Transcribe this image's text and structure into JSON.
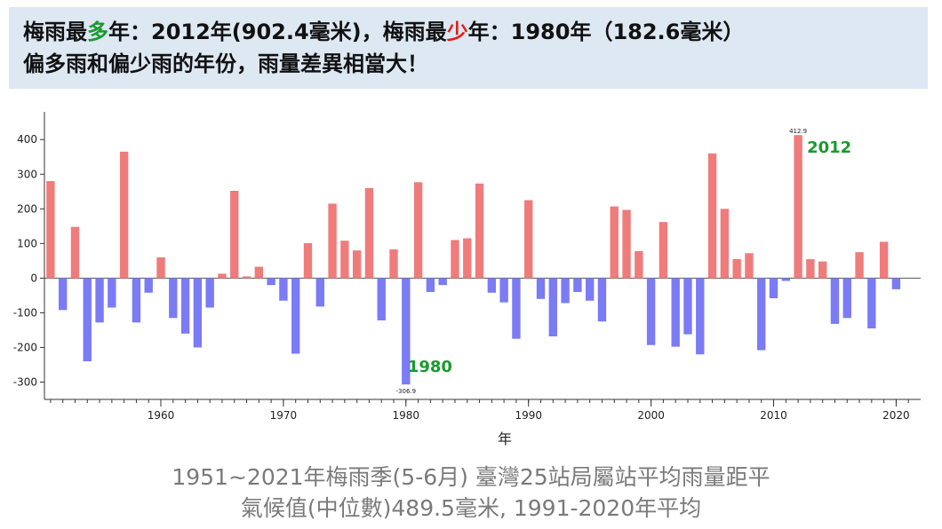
{
  "banner": {
    "line1": {
      "p1": "梅雨最",
      "p2": "多",
      "p3": "年：2012年(902.4毫米)，梅雨最",
      "p4": "少",
      "p5": "年：1980年（182.6毫米）"
    },
    "line2": "偏多雨和偏少雨的年份，雨量差異相當大！"
  },
  "caption": {
    "line1": "1951~2021年梅雨季(5-6月) 臺灣25站局屬站平均雨量距平",
    "line2": "氣候值(中位數)489.5毫米, 1991-2020年平均"
  },
  "chart_data": {
    "type": "bar",
    "xlabel": "年",
    "ylabel": "",
    "ylim": [
      -350,
      480
    ],
    "yticks": [
      400,
      300,
      200,
      100,
      0,
      -100,
      -200,
      -300
    ],
    "xticks": [
      1960,
      1970,
      1980,
      1990,
      2000,
      2010,
      2020
    ],
    "colors": {
      "positive": "#f07b7b",
      "negative": "#7b7bf5"
    },
    "x": [
      1951,
      1952,
      1953,
      1954,
      1955,
      1956,
      1957,
      1958,
      1959,
      1960,
      1961,
      1962,
      1963,
      1964,
      1965,
      1966,
      1967,
      1968,
      1969,
      1970,
      1971,
      1972,
      1973,
      1974,
      1975,
      1976,
      1977,
      1978,
      1979,
      1980,
      1981,
      1982,
      1983,
      1984,
      1985,
      1986,
      1987,
      1988,
      1989,
      1990,
      1991,
      1992,
      1993,
      1994,
      1995,
      1996,
      1997,
      1998,
      1999,
      2000,
      2001,
      2002,
      2003,
      2004,
      2005,
      2006,
      2007,
      2008,
      2009,
      2010,
      2011,
      2012,
      2013,
      2014,
      2015,
      2016,
      2017,
      2018,
      2019,
      2020,
      2021
    ],
    "values": [
      280,
      -92,
      148,
      -240,
      -128,
      -85,
      365,
      -128,
      -42,
      60,
      -115,
      -160,
      -200,
      -85,
      13,
      252,
      5,
      33,
      -20,
      -65,
      -218,
      101,
      -82,
      215,
      108,
      80,
      260,
      -122,
      83,
      -306.9,
      277,
      -40,
      -20,
      110,
      115,
      273,
      -42,
      -70,
      -175,
      225,
      -60,
      -168,
      -72,
      -40,
      -65,
      -125,
      207,
      197,
      78,
      -193,
      162,
      -198,
      -162,
      -220,
      360,
      200,
      55,
      72,
      -208,
      -58,
      -8,
      412.9,
      55,
      48,
      -132,
      -115,
      75,
      -145,
      105,
      -32,
      0
    ],
    "annotations": [
      {
        "year": 2012,
        "value_label": "412.9",
        "year_label": "2012",
        "color": "#1a9a2e"
      },
      {
        "year": 1980,
        "value_label": "-306.9",
        "year_label": "1980",
        "color": "#1a9a2e"
      }
    ]
  }
}
